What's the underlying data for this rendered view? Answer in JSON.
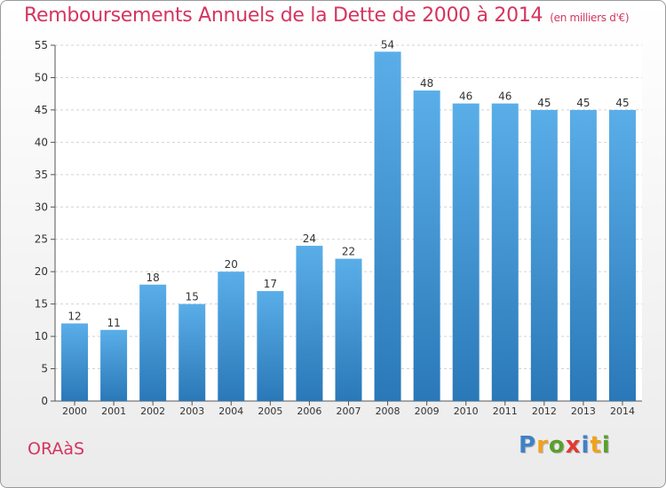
{
  "title": "Remboursements Annuels de la Dette de 2000 à 2014",
  "subtitle": "(en milliers d'€)",
  "commune": "ORAàS",
  "logo": "Proxiti",
  "colors": {
    "bar_top": "#5aaee8",
    "bar_bottom": "#2a78b8",
    "title": "#d43560"
  },
  "chart_data": {
    "type": "bar",
    "categories": [
      "2000",
      "2001",
      "2002",
      "2003",
      "2004",
      "2005",
      "2006",
      "2007",
      "2008",
      "2009",
      "2010",
      "2011",
      "2012",
      "2013",
      "2014"
    ],
    "values": [
      12,
      11,
      18,
      15,
      20,
      17,
      24,
      22,
      54,
      48,
      46,
      46,
      45,
      45,
      45
    ],
    "ylim": [
      0,
      55
    ],
    "yticks": [
      0,
      5,
      10,
      15,
      20,
      25,
      30,
      35,
      40,
      45,
      50,
      55
    ],
    "grid": true,
    "data_labels": true
  }
}
